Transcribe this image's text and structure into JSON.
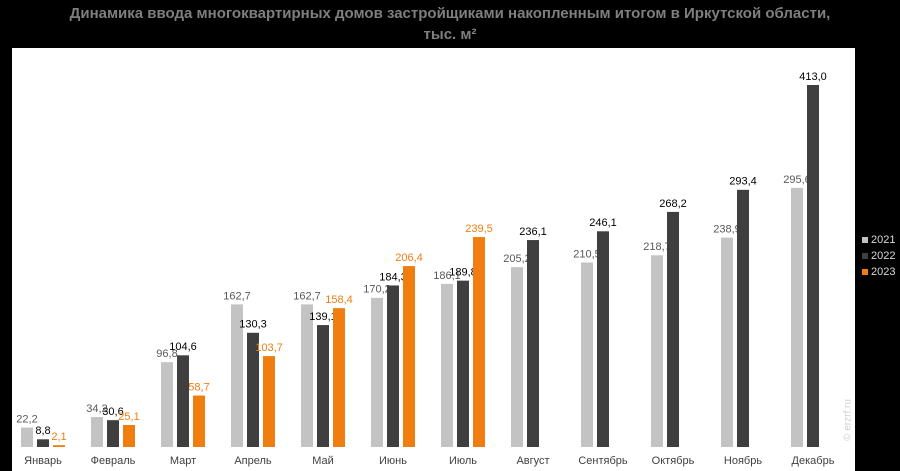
{
  "chart_data": {
    "type": "bar",
    "title": "Динамика ввода многоквартирных домов застройщиками накопленным итогом в Иркутской области, тыс. м²",
    "categories": [
      "Январь",
      "Февраль",
      "Март",
      "Апрель",
      "Май",
      "Июнь",
      "Июль",
      "Август",
      "Сентябрь",
      "Октябрь",
      "Ноябрь",
      "Декабрь"
    ],
    "series": [
      {
        "name": "2021",
        "color": "#c3c3c3",
        "label_color": "#595959",
        "values": [
          22.2,
          34.2,
          96.8,
          162.7,
          162.7,
          170.2,
          186.1,
          205.2,
          210.5,
          218.7,
          238.9,
          295.6
        ],
        "value_labels": [
          "22,2",
          "34,2",
          "96,8",
          "162,7",
          "162,7",
          "170,2",
          "186,1",
          "205,2",
          "210,5",
          "218,7",
          "238,9",
          "295,6"
        ]
      },
      {
        "name": "2022",
        "color": "#3f3f3f",
        "label_color": "#000000",
        "values": [
          8.8,
          30.6,
          104.6,
          130.3,
          139.1,
          184.3,
          189.8,
          236.1,
          246.1,
          268.2,
          293.4,
          413.0
        ],
        "value_labels": [
          "8,8",
          "30,6",
          "104,6",
          "130,3",
          "139,1",
          "184,3",
          "189,8",
          "236,1",
          "246,1",
          "268,2",
          "293,4",
          "413,0"
        ]
      },
      {
        "name": "2023",
        "color": "#f07d10",
        "label_color": "#f07d10",
        "values": [
          2.1,
          25.1,
          58.7,
          103.7,
          158.4,
          206.4,
          239.5,
          null,
          null,
          null,
          null,
          null
        ],
        "value_labels": [
          "2,1",
          "25,1",
          "58,7",
          "103,7",
          "158,4",
          "206,4",
          "239,5",
          null,
          null,
          null,
          null,
          null
        ]
      }
    ],
    "legend": "right",
    "watermark": "© erzrf.ru"
  }
}
